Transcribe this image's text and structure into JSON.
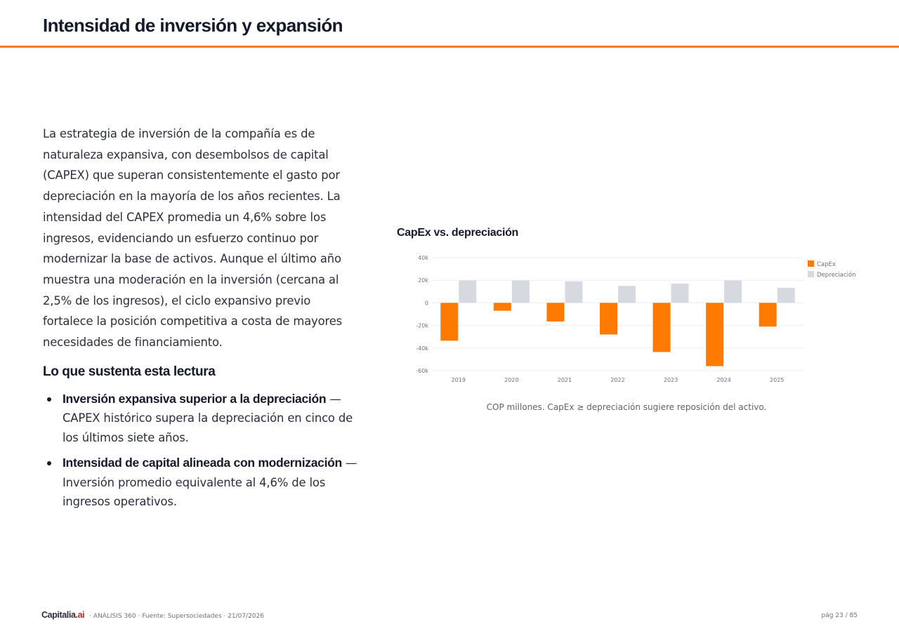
{
  "header": {
    "title": "Intensidad de inversión y expansión",
    "accent_color": "#f47a0f"
  },
  "main": {
    "paragraph": "La estrategia de inversión de la compañía es de naturaleza expansiva, con desembolsos de capital (CAPEX) que superan consistentemente el gasto por depreciación en la mayoría de los años recientes. La intensidad del CAPEX promedia un 4,6% sobre los ingresos, evidenciando un esfuerzo continuo por modernizar la base de activos. Aunque el último año muestra una moderación en la inversión (cercana al 2,5% de los ingresos), el ciclo expansivo previo fortalece la posición competitiva a costa de mayores necesidades de financiamiento.",
    "subheading": "Lo que sustenta esta lectura",
    "bullets": [
      {
        "title": "Inversión expansiva superior a la depreciación",
        "text": " — CAPEX histórico supera la depreciación en cinco de los últimos siete años."
      },
      {
        "title": "Intensidad de capital alineada con modernización",
        "text": " — Inversión promedio equivalente al 4,6% de los ingresos operativos."
      }
    ]
  },
  "chart": {
    "heading": "CapEx vs. depreciación",
    "caption": "COP millones. CapEx ≥ depreciación sugiere reposición del activo."
  },
  "chart_data": {
    "type": "bar",
    "title": "CapEx vs. depreciación",
    "xlabel": "",
    "ylabel": "",
    "categories": [
      "2019",
      "2020",
      "2021",
      "2022",
      "2023",
      "2024",
      "2025"
    ],
    "series": [
      {
        "name": "CapEx",
        "color": "#ff7a00",
        "values": [
          -33500,
          -7000,
          -16500,
          -28000,
          -43500,
          -56000,
          -21000
        ]
      },
      {
        "name": "Depreciación",
        "color": "#d6d9e0",
        "values": [
          19800,
          19800,
          19000,
          15000,
          17000,
          19800,
          13300
        ]
      }
    ],
    "ylim": [
      -60000,
      40000
    ],
    "yticks": [
      40000,
      20000,
      0,
      -20000,
      -40000,
      -60000
    ],
    "ytick_labels": [
      "40k",
      "20k",
      "0",
      "-20k",
      "-40k",
      "-60k"
    ],
    "grid": true,
    "legend": "top-right"
  },
  "footer": {
    "brand": "Capitalia",
    "brand_suffix": ".ai",
    "meta": "· ANÁLISIS 360 · Fuente: Supersociedades · 21/07/2026",
    "page": "pág 23 / 85"
  }
}
